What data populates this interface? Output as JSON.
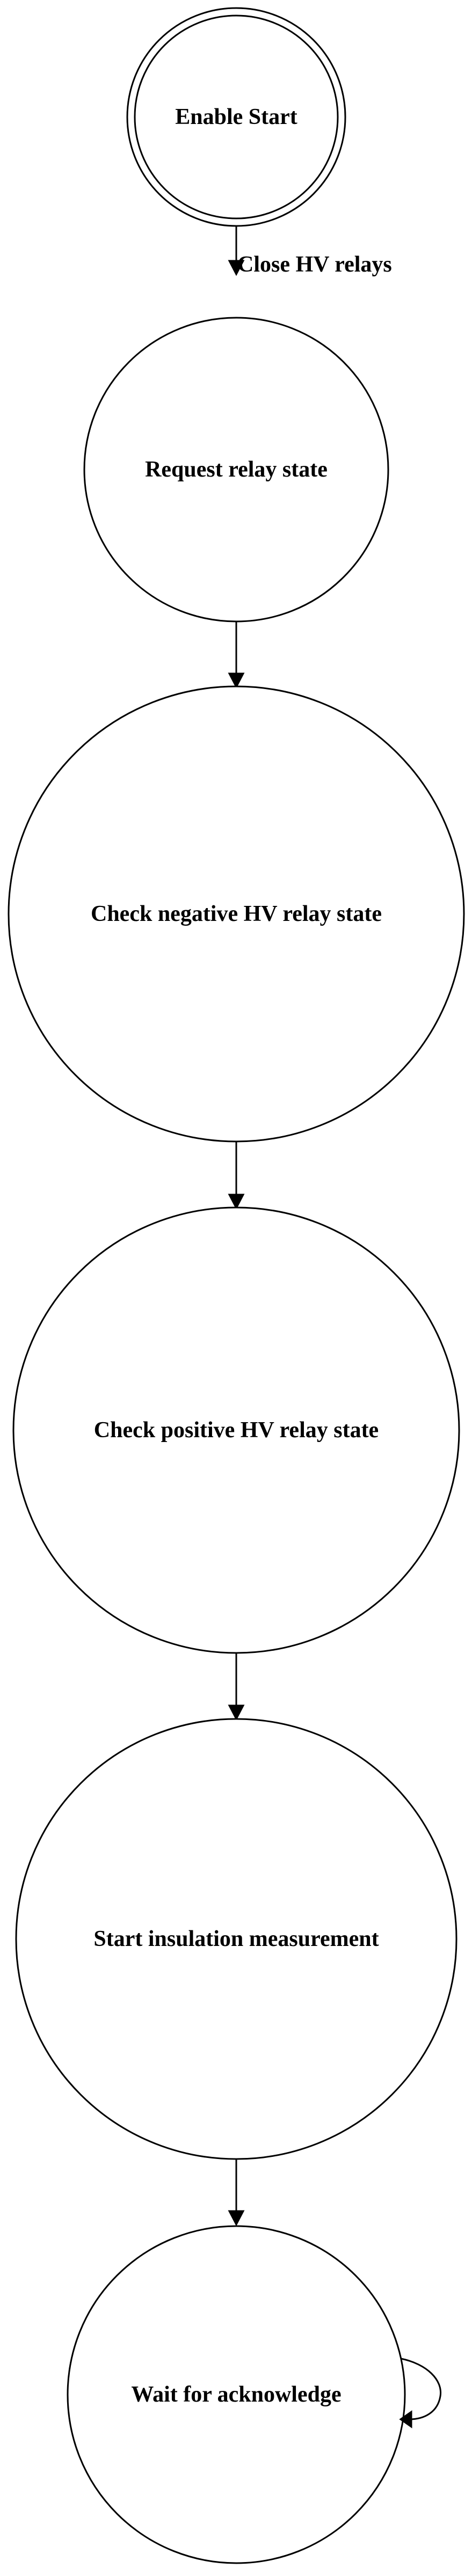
{
  "diagram": {
    "type": "state-machine",
    "nodes": [
      {
        "id": "enable_start",
        "label": "Enable Start",
        "shape": "doublecircle"
      },
      {
        "id": "request_relay_state",
        "label": "Request relay state",
        "shape": "circle"
      },
      {
        "id": "check_negative_hv",
        "label": "Check negative HV relay state",
        "shape": "circle"
      },
      {
        "id": "check_positive_hv",
        "label": "Check positive HV relay state",
        "shape": "circle"
      },
      {
        "id": "start_insulation",
        "label": "Start insulation measurement",
        "shape": "circle"
      },
      {
        "id": "wait_for_ack",
        "label": "Wait for acknowledge",
        "shape": "circle"
      }
    ],
    "edges": [
      {
        "from": "enable_start",
        "to": "request_relay_state",
        "label": "Close HV relays"
      },
      {
        "from": "request_relay_state",
        "to": "check_negative_hv",
        "label": ""
      },
      {
        "from": "check_negative_hv",
        "to": "check_positive_hv",
        "label": ""
      },
      {
        "from": "check_positive_hv",
        "to": "start_insulation",
        "label": ""
      },
      {
        "from": "start_insulation",
        "to": "wait_for_ack",
        "label": ""
      },
      {
        "from": "wait_for_ack",
        "to": "wait_for_ack",
        "label": ""
      }
    ]
  }
}
